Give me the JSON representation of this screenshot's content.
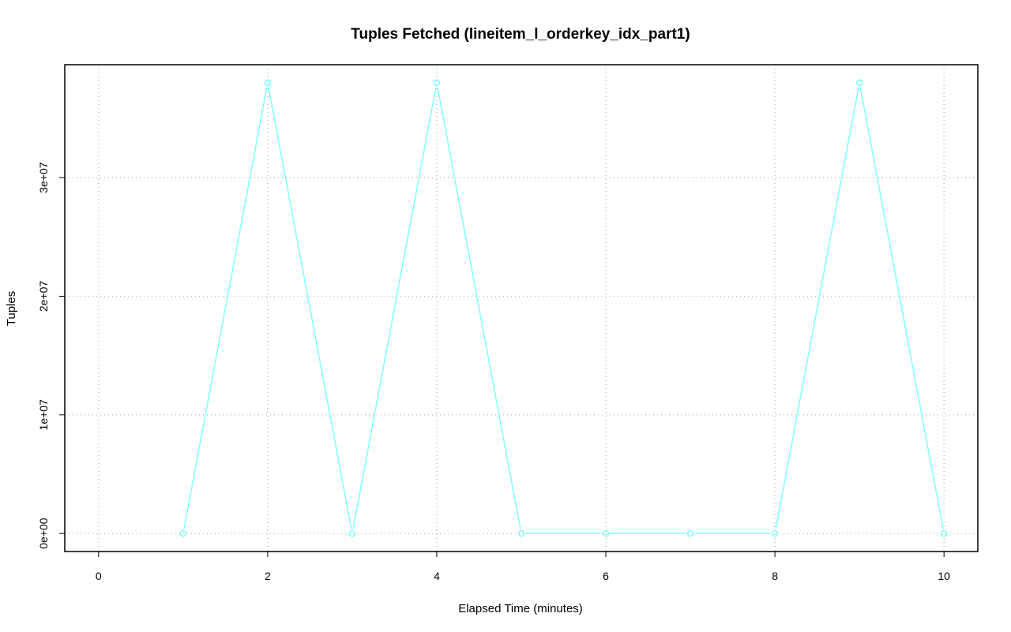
{
  "chart_data": {
    "type": "line",
    "title": "Tuples Fetched (lineitem_l_orderkey_idx_part1)",
    "xlabel": "Elapsed Time (minutes)",
    "ylabel": "Tuples",
    "x": [
      1,
      2,
      3,
      4,
      5,
      6,
      7,
      8,
      9,
      10
    ],
    "series": [
      {
        "values": [
          0,
          38000000,
          0,
          38000000,
          0,
          0,
          0,
          0,
          38000000,
          0
        ],
        "color": "#7fffff"
      }
    ],
    "xticks": [
      0,
      2,
      4,
      6,
      8,
      10
    ],
    "xtick_labels": [
      "0",
      "2",
      "4",
      "6",
      "8",
      "10"
    ],
    "yticks": [
      0,
      10000000,
      20000000,
      30000000
    ],
    "ytick_labels": [
      "0e+00",
      "1e+07",
      "2e+07",
      "3e+07"
    ],
    "xlim": [
      -0.4,
      10.4
    ],
    "ylim": [
      -1520000,
      39520000
    ],
    "grid": true,
    "grid_color": "#bebebe"
  }
}
